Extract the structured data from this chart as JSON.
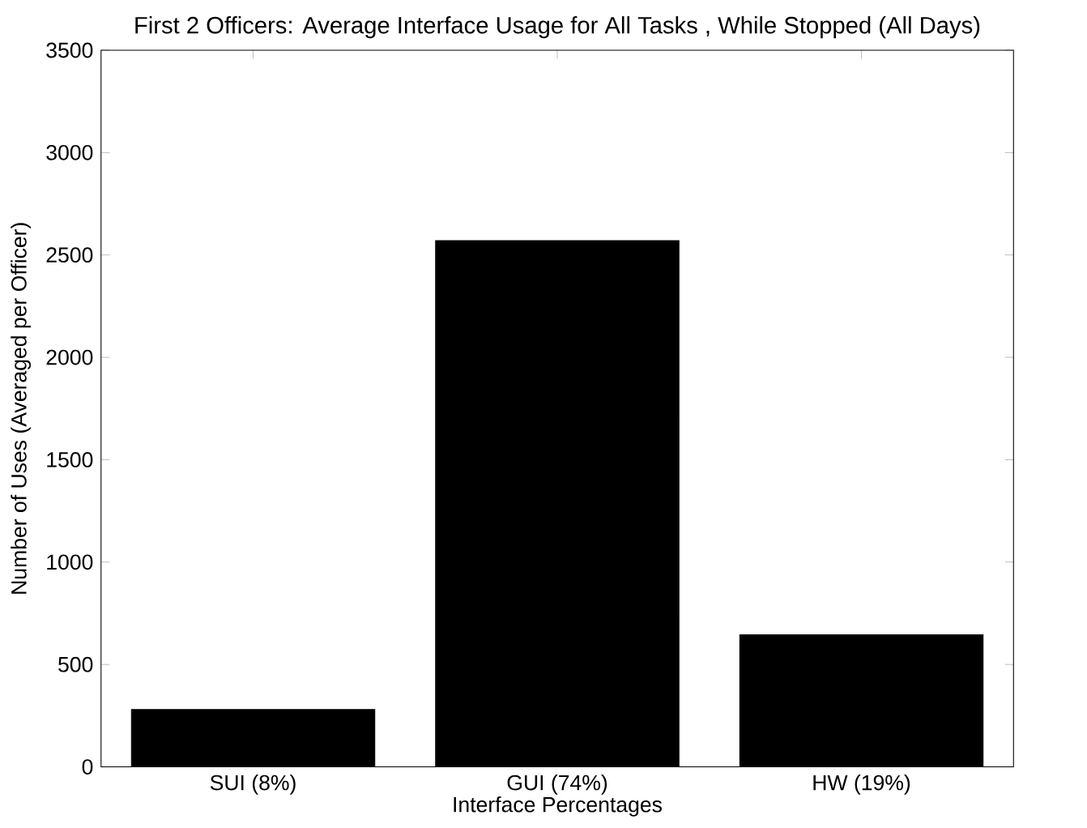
{
  "chart_data": {
    "type": "bar",
    "title": "First 2 Officers: Average Interface Usage for All Tasks , While Stopped (All Days)",
    "xlabel": "Interface Percentages",
    "ylabel": "Number of Uses (Averaged per Officer)",
    "categories": [
      "SUI (8%)",
      "GUI (74%)",
      "HW (19%)"
    ],
    "values": [
      280,
      2570,
      645
    ],
    "color": "#000000",
    "ylim": [
      0,
      3500
    ],
    "yticks": [
      0,
      500,
      1000,
      1500,
      2000,
      2500,
      3000,
      3500
    ]
  }
}
